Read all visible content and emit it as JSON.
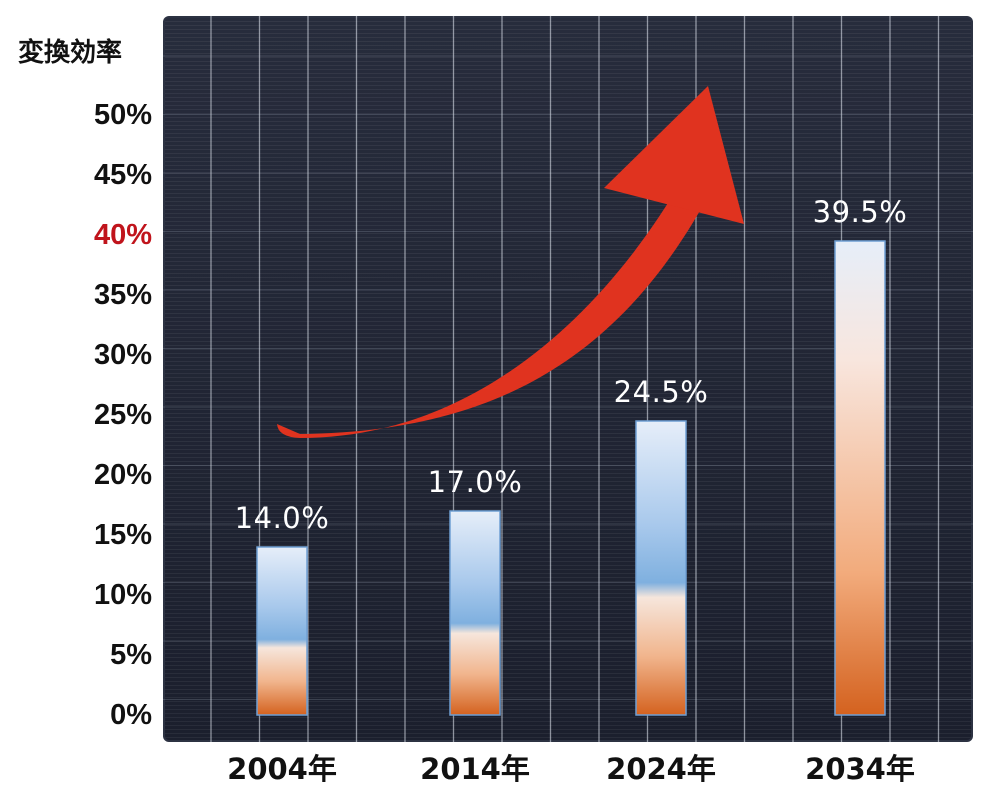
{
  "chart_data": {
    "type": "bar",
    "ylabel": "変換効率",
    "xlabel": "",
    "categories": [
      "2004年",
      "2014年",
      "2024年",
      "2034年"
    ],
    "values": [
      14.0,
      17.0,
      24.5,
      39.5
    ],
    "value_labels": [
      "14.0%",
      "17.0%",
      "24.5%",
      "39.5%"
    ],
    "ylim": [
      0,
      50
    ],
    "yticks": [
      "0%",
      "5%",
      "10%",
      "15%",
      "20%",
      "25%",
      "30%",
      "35%",
      "40%",
      "45%",
      "50%"
    ],
    "highlighted_tick": "40%",
    "grid": true,
    "trend_arrow": "up-right",
    "colors": {
      "tick_text": "#111111",
      "highlight_tick": "#c0141c",
      "arrow": "#e0331f",
      "bar_blue": "#7fb0df",
      "bar_orange": "#d4621f",
      "value_label": "#ffffff"
    }
  }
}
